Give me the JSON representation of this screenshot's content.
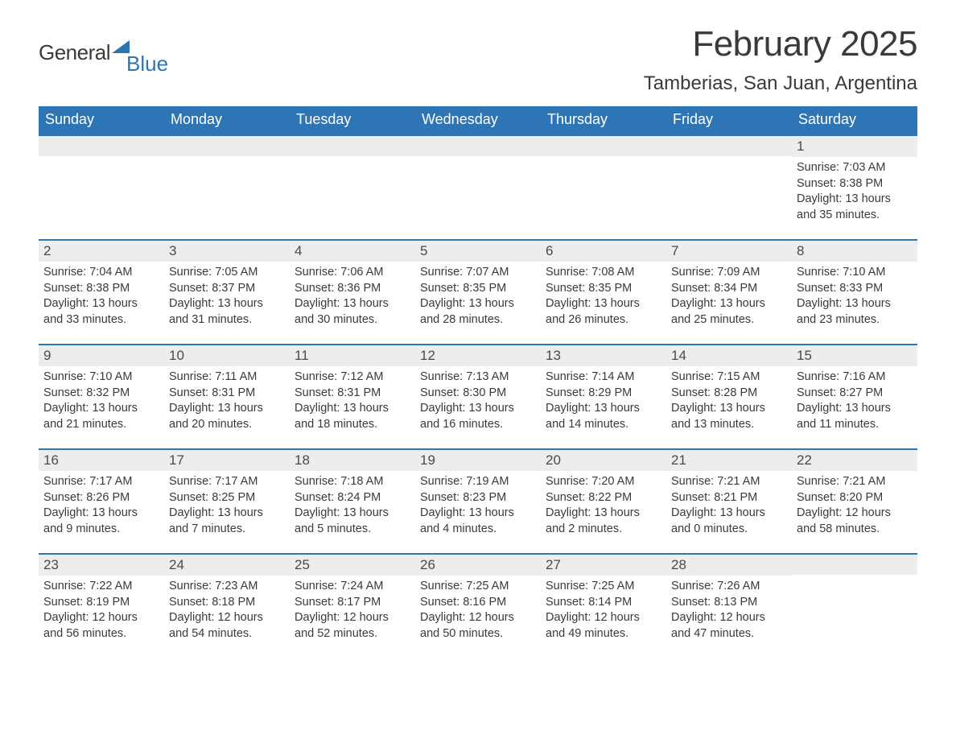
{
  "logo": {
    "word1": "General",
    "word2": "Blue"
  },
  "header": {
    "month_title": "February 2025",
    "location": "Tamberias, San Juan, Argentina"
  },
  "colors": {
    "header_blue": "#2e75b6",
    "daynum_bg": "#ededed",
    "text": "#3a3a3a",
    "white": "#ffffff"
  },
  "weekdays": [
    "Sunday",
    "Monday",
    "Tuesday",
    "Wednesday",
    "Thursday",
    "Friday",
    "Saturday"
  ],
  "calendar": {
    "start_weekday_index": 6,
    "days": [
      {
        "n": "1",
        "sunrise": "Sunrise: 7:03 AM",
        "sunset": "Sunset: 8:38 PM",
        "daylight": "Daylight: 13 hours and 35 minutes."
      },
      {
        "n": "2",
        "sunrise": "Sunrise: 7:04 AM",
        "sunset": "Sunset: 8:38 PM",
        "daylight": "Daylight: 13 hours and 33 minutes."
      },
      {
        "n": "3",
        "sunrise": "Sunrise: 7:05 AM",
        "sunset": "Sunset: 8:37 PM",
        "daylight": "Daylight: 13 hours and 31 minutes."
      },
      {
        "n": "4",
        "sunrise": "Sunrise: 7:06 AM",
        "sunset": "Sunset: 8:36 PM",
        "daylight": "Daylight: 13 hours and 30 minutes."
      },
      {
        "n": "5",
        "sunrise": "Sunrise: 7:07 AM",
        "sunset": "Sunset: 8:35 PM",
        "daylight": "Daylight: 13 hours and 28 minutes."
      },
      {
        "n": "6",
        "sunrise": "Sunrise: 7:08 AM",
        "sunset": "Sunset: 8:35 PM",
        "daylight": "Daylight: 13 hours and 26 minutes."
      },
      {
        "n": "7",
        "sunrise": "Sunrise: 7:09 AM",
        "sunset": "Sunset: 8:34 PM",
        "daylight": "Daylight: 13 hours and 25 minutes."
      },
      {
        "n": "8",
        "sunrise": "Sunrise: 7:10 AM",
        "sunset": "Sunset: 8:33 PM",
        "daylight": "Daylight: 13 hours and 23 minutes."
      },
      {
        "n": "9",
        "sunrise": "Sunrise: 7:10 AM",
        "sunset": "Sunset: 8:32 PM",
        "daylight": "Daylight: 13 hours and 21 minutes."
      },
      {
        "n": "10",
        "sunrise": "Sunrise: 7:11 AM",
        "sunset": "Sunset: 8:31 PM",
        "daylight": "Daylight: 13 hours and 20 minutes."
      },
      {
        "n": "11",
        "sunrise": "Sunrise: 7:12 AM",
        "sunset": "Sunset: 8:31 PM",
        "daylight": "Daylight: 13 hours and 18 minutes."
      },
      {
        "n": "12",
        "sunrise": "Sunrise: 7:13 AM",
        "sunset": "Sunset: 8:30 PM",
        "daylight": "Daylight: 13 hours and 16 minutes."
      },
      {
        "n": "13",
        "sunrise": "Sunrise: 7:14 AM",
        "sunset": "Sunset: 8:29 PM",
        "daylight": "Daylight: 13 hours and 14 minutes."
      },
      {
        "n": "14",
        "sunrise": "Sunrise: 7:15 AM",
        "sunset": "Sunset: 8:28 PM",
        "daylight": "Daylight: 13 hours and 13 minutes."
      },
      {
        "n": "15",
        "sunrise": "Sunrise: 7:16 AM",
        "sunset": "Sunset: 8:27 PM",
        "daylight": "Daylight: 13 hours and 11 minutes."
      },
      {
        "n": "16",
        "sunrise": "Sunrise: 7:17 AM",
        "sunset": "Sunset: 8:26 PM",
        "daylight": "Daylight: 13 hours and 9 minutes."
      },
      {
        "n": "17",
        "sunrise": "Sunrise: 7:17 AM",
        "sunset": "Sunset: 8:25 PM",
        "daylight": "Daylight: 13 hours and 7 minutes."
      },
      {
        "n": "18",
        "sunrise": "Sunrise: 7:18 AM",
        "sunset": "Sunset: 8:24 PM",
        "daylight": "Daylight: 13 hours and 5 minutes."
      },
      {
        "n": "19",
        "sunrise": "Sunrise: 7:19 AM",
        "sunset": "Sunset: 8:23 PM",
        "daylight": "Daylight: 13 hours and 4 minutes."
      },
      {
        "n": "20",
        "sunrise": "Sunrise: 7:20 AM",
        "sunset": "Sunset: 8:22 PM",
        "daylight": "Daylight: 13 hours and 2 minutes."
      },
      {
        "n": "21",
        "sunrise": "Sunrise: 7:21 AM",
        "sunset": "Sunset: 8:21 PM",
        "daylight": "Daylight: 13 hours and 0 minutes."
      },
      {
        "n": "22",
        "sunrise": "Sunrise: 7:21 AM",
        "sunset": "Sunset: 8:20 PM",
        "daylight": "Daylight: 12 hours and 58 minutes."
      },
      {
        "n": "23",
        "sunrise": "Sunrise: 7:22 AM",
        "sunset": "Sunset: 8:19 PM",
        "daylight": "Daylight: 12 hours and 56 minutes."
      },
      {
        "n": "24",
        "sunrise": "Sunrise: 7:23 AM",
        "sunset": "Sunset: 8:18 PM",
        "daylight": "Daylight: 12 hours and 54 minutes."
      },
      {
        "n": "25",
        "sunrise": "Sunrise: 7:24 AM",
        "sunset": "Sunset: 8:17 PM",
        "daylight": "Daylight: 12 hours and 52 minutes."
      },
      {
        "n": "26",
        "sunrise": "Sunrise: 7:25 AM",
        "sunset": "Sunset: 8:16 PM",
        "daylight": "Daylight: 12 hours and 50 minutes."
      },
      {
        "n": "27",
        "sunrise": "Sunrise: 7:25 AM",
        "sunset": "Sunset: 8:14 PM",
        "daylight": "Daylight: 12 hours and 49 minutes."
      },
      {
        "n": "28",
        "sunrise": "Sunrise: 7:26 AM",
        "sunset": "Sunset: 8:13 PM",
        "daylight": "Daylight: 12 hours and 47 minutes."
      }
    ]
  }
}
